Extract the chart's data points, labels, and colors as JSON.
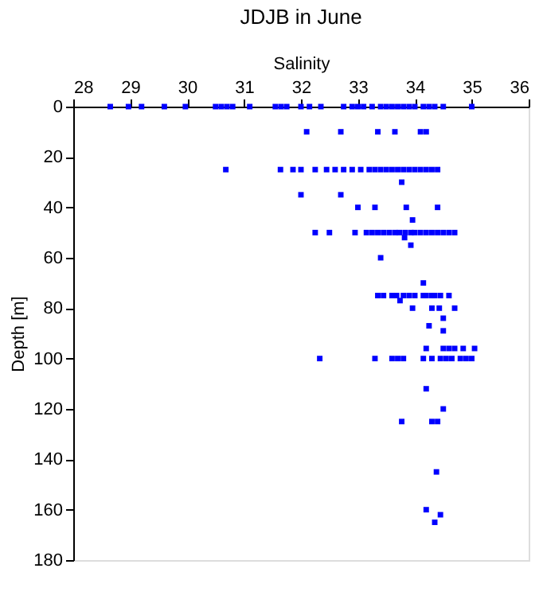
{
  "chart_data": {
    "type": "scatter",
    "title": "JDJB in June",
    "xlabel": "Salinity",
    "ylabel": "Depth [m]",
    "xlim": [
      28,
      36
    ],
    "xticks": [
      28,
      29,
      30,
      31,
      32,
      33,
      34,
      35,
      36
    ],
    "ylim": [
      180,
      0
    ],
    "yticks": [
      0,
      20,
      40,
      60,
      80,
      100,
      120,
      140,
      160,
      180
    ],
    "grid": false,
    "legend": false,
    "marker": "square",
    "series": [
      {
        "color": "#0000ff",
        "x": [
          28.65,
          28.97,
          29.2,
          29.6,
          29.97,
          30.5,
          30.6,
          30.7,
          30.8,
          31.1,
          31.55,
          31.65,
          31.75,
          32.0,
          32.15,
          32.35,
          32.75,
          32.9,
          33.0,
          33.1,
          33.25,
          33.4,
          33.5,
          33.6,
          33.7,
          33.8,
          33.9,
          34.0,
          34.15,
          34.25,
          34.35,
          34.5,
          35.0,
          32.1,
          32.7,
          33.35,
          33.65,
          34.1,
          34.2,
          30.68,
          31.64,
          31.86,
          32.0,
          32.25,
          32.45,
          32.6,
          32.75,
          32.9,
          33.05,
          33.2,
          33.3,
          33.4,
          33.5,
          33.6,
          33.7,
          33.8,
          33.9,
          34.0,
          34.1,
          34.2,
          34.3,
          34.4,
          33.77,
          32.0,
          32.7,
          33.0,
          33.3,
          33.85,
          34.4,
          33.96,
          32.25,
          32.5,
          32.95,
          33.15,
          33.25,
          33.35,
          33.45,
          33.55,
          33.65,
          33.73,
          33.83,
          33.93,
          34.0,
          34.1,
          34.2,
          34.3,
          34.4,
          34.5,
          34.6,
          34.7,
          33.82,
          33.93,
          33.4,
          34.15,
          33.35,
          33.45,
          33.6,
          33.68,
          33.8,
          33.9,
          34.0,
          34.15,
          34.2,
          34.3,
          34.35,
          34.45,
          34.6,
          33.74,
          33.96,
          34.3,
          34.43,
          34.7,
          34.5,
          34.25,
          34.5,
          34.2,
          34.5,
          34.6,
          34.7,
          34.85,
          35.05,
          32.33,
          33.3,
          33.6,
          33.7,
          33.8,
          34.15,
          34.3,
          34.45,
          34.55,
          34.65,
          34.8,
          34.9,
          35.0,
          34.2,
          34.5,
          33.77,
          34.3,
          34.4,
          34.38,
          34.2,
          34.45,
          34.35
        ],
        "values": [
          0,
          0,
          0,
          0,
          0,
          0,
          0,
          0,
          0,
          0,
          0,
          0,
          0,
          0,
          0,
          0,
          0,
          0,
          0,
          0,
          0,
          0,
          0,
          0,
          0,
          0,
          0,
          0,
          0,
          0,
          0,
          0,
          0,
          10,
          10,
          10,
          10,
          10,
          10,
          25,
          25,
          25,
          25,
          25,
          25,
          25,
          25,
          25,
          25,
          25,
          25,
          25,
          25,
          25,
          25,
          25,
          25,
          25,
          25,
          25,
          25,
          25,
          30,
          35,
          35,
          40,
          40,
          40,
          40,
          45,
          50,
          50,
          50,
          50,
          50,
          50,
          50,
          50,
          50,
          50,
          50,
          50,
          50,
          50,
          50,
          50,
          50,
          50,
          50,
          50,
          52,
          55,
          60,
          70,
          75,
          75,
          75,
          75,
          75,
          75,
          75,
          75,
          75,
          75,
          75,
          75,
          75,
          77,
          80,
          80,
          80,
          80,
          84,
          87,
          89,
          96,
          96,
          96,
          96,
          96,
          96,
          100,
          100,
          100,
          100,
          100,
          100,
          100,
          100,
          100,
          100,
          100,
          100,
          100,
          112,
          120,
          125,
          125,
          125,
          145,
          160,
          162,
          165
        ]
      }
    ]
  }
}
